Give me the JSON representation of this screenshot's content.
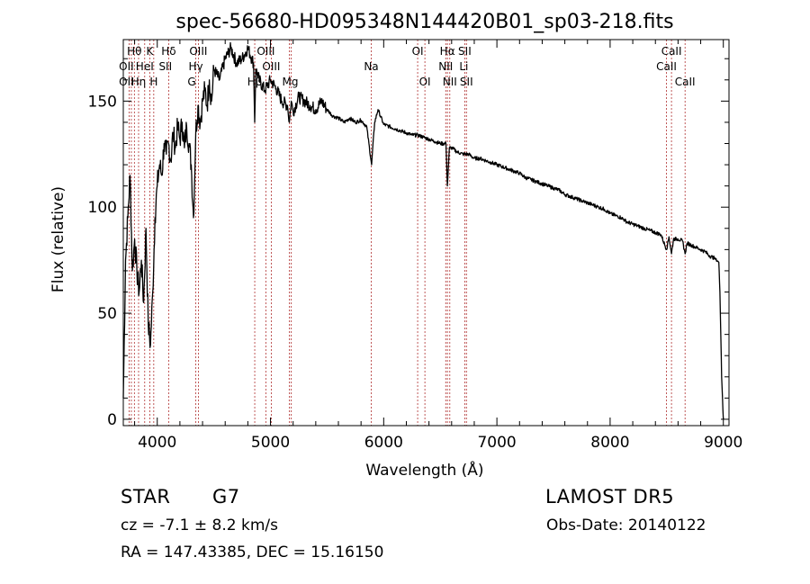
{
  "chart_data": {
    "type": "line",
    "title": "spec-56680-HD095348N144420B01_sp03-218.fits",
    "xlabel": "Wavelength (Å)",
    "ylabel": "Flux (relative)",
    "xlim": [
      3700,
      9050
    ],
    "ylim": [
      -3,
      179
    ],
    "xticks": [
      4000,
      5000,
      6000,
      7000,
      8000,
      9000
    ],
    "yticks": [
      0,
      50,
      100,
      150
    ],
    "grid": false,
    "series": [
      {
        "x": [
          3700,
          3720,
          3740,
          3760,
          3780,
          3800,
          3820,
          3840,
          3860,
          3880,
          3900,
          3920,
          3940,
          3960,
          3980,
          4000,
          4020,
          4040,
          4060,
          4080,
          4100,
          4120,
          4140,
          4160,
          4180,
          4200,
          4220,
          4240,
          4260,
          4280,
          4300,
          4320,
          4340,
          4360,
          4380,
          4400,
          4420,
          4440,
          4460,
          4480,
          4500,
          4550,
          4600,
          4650,
          4700,
          4750,
          4800,
          4850,
          4861,
          4870,
          4900,
          4950,
          5000,
          5050,
          5100,
          5150,
          5167,
          5183,
          5200,
          5250,
          5300,
          5350,
          5400,
          5450,
          5500,
          5550,
          5600,
          5650,
          5700,
          5750,
          5800,
          5850,
          5893,
          5920,
          5950,
          6000,
          6050,
          6100,
          6150,
          6200,
          6250,
          6300,
          6350,
          6400,
          6450,
          6500,
          6550,
          6563,
          6580,
          6600,
          6650,
          6700,
          6750,
          6800,
          6850,
          6900,
          6950,
          7000,
          7050,
          7100,
          7150,
          7200,
          7250,
          7300,
          7350,
          7400,
          7450,
          7500,
          7550,
          7600,
          7650,
          7700,
          7750,
          7800,
          7850,
          7900,
          7950,
          8000,
          8050,
          8100,
          8150,
          8200,
          8250,
          8300,
          8350,
          8400,
          8450,
          8498,
          8520,
          8542,
          8560,
          8600,
          8640,
          8662,
          8680,
          8720,
          8760,
          8800,
          8840,
          8880,
          8920,
          8960,
          8970,
          8985,
          9000
        ],
        "y": [
          10,
          75,
          95,
          115,
          70,
          85,
          70,
          60,
          75,
          55,
          90,
          45,
          35,
          60,
          95,
          110,
          120,
          115,
          130,
          125,
          130,
          122,
          135,
          128,
          138,
          132,
          140,
          128,
          138,
          130,
          120,
          95,
          135,
          148,
          140,
          150,
          155,
          148,
          160,
          150,
          165,
          160,
          170,
          175,
          168,
          170,
          175,
          168,
          140,
          165,
          160,
          155,
          160,
          156,
          150,
          148,
          140,
          150,
          145,
          152,
          150,
          148,
          146,
          150,
          146,
          143,
          142,
          140,
          142,
          140,
          141,
          138,
          120,
          140,
          146,
          139,
          138,
          137,
          136,
          135,
          134,
          134,
          133,
          132,
          131,
          130,
          130,
          110,
          128,
          128,
          126,
          125,
          125,
          123,
          123,
          122,
          121,
          120,
          119,
          118,
          117,
          116,
          114,
          113,
          112,
          111,
          110,
          109,
          108,
          106,
          105,
          104,
          103,
          102,
          101,
          100,
          99,
          97,
          96,
          95,
          93,
          92,
          91,
          90,
          89,
          88,
          87,
          80,
          86,
          78,
          85,
          85,
          84,
          78,
          83,
          82,
          81,
          80,
          79,
          77,
          76,
          74,
          60,
          20,
          0
        ]
      }
    ],
    "annotations": {
      "line_x": [
        3751,
        3771,
        3798,
        3835,
        3889,
        3934,
        3969,
        4101,
        4340,
        4363,
        4861,
        4959,
        5007,
        5167,
        5183,
        5890,
        6300,
        6364,
        6548,
        6563,
        6584,
        6716,
        6731,
        8498,
        8542,
        8662
      ],
      "labels": [
        {
          "text": "Hθ",
          "x": 3798,
          "row": 1
        },
        {
          "text": "K",
          "x": 3934,
          "row": 1
        },
        {
          "text": "Hδ",
          "x": 4101,
          "row": 1
        },
        {
          "text": "OIII",
          "x": 4363,
          "row": 1
        },
        {
          "text": "OIII",
          "x": 4959,
          "row": 1
        },
        {
          "text": "OI",
          "x": 6300,
          "row": 1
        },
        {
          "text": "Hα",
          "x": 6563,
          "row": 1
        },
        {
          "text": "SII",
          "x": 6716,
          "row": 1
        },
        {
          "text": "CaII",
          "x": 8542,
          "row": 1
        },
        {
          "text": "OII",
          "x": 3727,
          "row": 2
        },
        {
          "text": "HeI",
          "x": 3889,
          "row": 2
        },
        {
          "text": "SII",
          "x": 4072,
          "row": 2
        },
        {
          "text": "Hγ",
          "x": 4340,
          "row": 2
        },
        {
          "text": "OIII",
          "x": 5007,
          "row": 2
        },
        {
          "text": "Na",
          "x": 5890,
          "row": 2
        },
        {
          "text": "NII",
          "x": 6548,
          "row": 2
        },
        {
          "text": "Li",
          "x": 6708,
          "row": 2
        },
        {
          "text": "CaII",
          "x": 8498,
          "row": 2
        },
        {
          "text": "OII",
          "x": 3727,
          "row": 3
        },
        {
          "text": "Hη",
          "x": 3835,
          "row": 3
        },
        {
          "text": "H",
          "x": 3969,
          "row": 3
        },
        {
          "text": "G",
          "x": 4304,
          "row": 3
        },
        {
          "text": "Hβ",
          "x": 4861,
          "row": 3
        },
        {
          "text": "Mg",
          "x": 5175,
          "row": 3
        },
        {
          "text": "OI",
          "x": 6364,
          "row": 3
        },
        {
          "text": "NII",
          "x": 6584,
          "row": 3
        },
        {
          "text": "SII",
          "x": 6731,
          "row": 3
        },
        {
          "text": "CaII",
          "x": 8662,
          "row": 3
        }
      ]
    }
  },
  "info": {
    "object_class": "STAR",
    "subclass": "G7",
    "survey": "LAMOST DR5",
    "cz_label": "cz = -7.1 ± 8.2 km/s",
    "obs_date": "Obs-Date: 20140122",
    "coords": "RA = 147.43385, DEC =  15.16150"
  },
  "colors": {
    "spectrum": "#000000",
    "line_markers": "#b03030",
    "background": "#ffffff"
  }
}
